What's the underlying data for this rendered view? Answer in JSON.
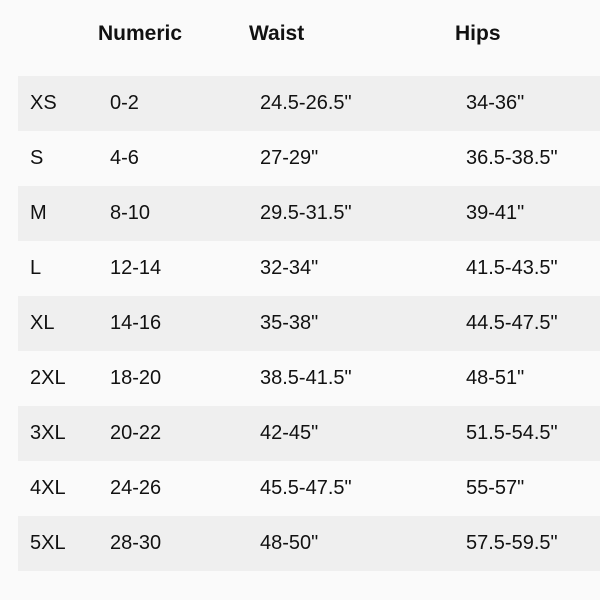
{
  "headers": [
    "",
    "Numeric",
    "Waist",
    "Hips"
  ],
  "rows": [
    [
      "XS",
      "0-2",
      "24.5-26.5\"",
      "34-36\""
    ],
    [
      "S",
      "4-6",
      "27-29\"",
      "36.5-38.5\""
    ],
    [
      "M",
      "8-10",
      "29.5-31.5\"",
      "39-41\""
    ],
    [
      "L",
      "12-14",
      "32-34\"",
      "41.5-43.5\""
    ],
    [
      "XL",
      "14-16",
      "35-38\"",
      "44.5-47.5\""
    ],
    [
      "2XL",
      "18-20",
      "38.5-41.5\"",
      "48-51\""
    ],
    [
      "3XL",
      "20-22",
      "42-45\"",
      "51.5-54.5\""
    ],
    [
      "4XL",
      "24-26",
      "45.5-47.5\"",
      "55-57\""
    ],
    [
      "5XL",
      "28-30",
      "48-50\"",
      "57.5-59.5\""
    ]
  ],
  "colors": {
    "background": "#fafafa",
    "shaded_row": "#efefef",
    "text": "#111111"
  }
}
